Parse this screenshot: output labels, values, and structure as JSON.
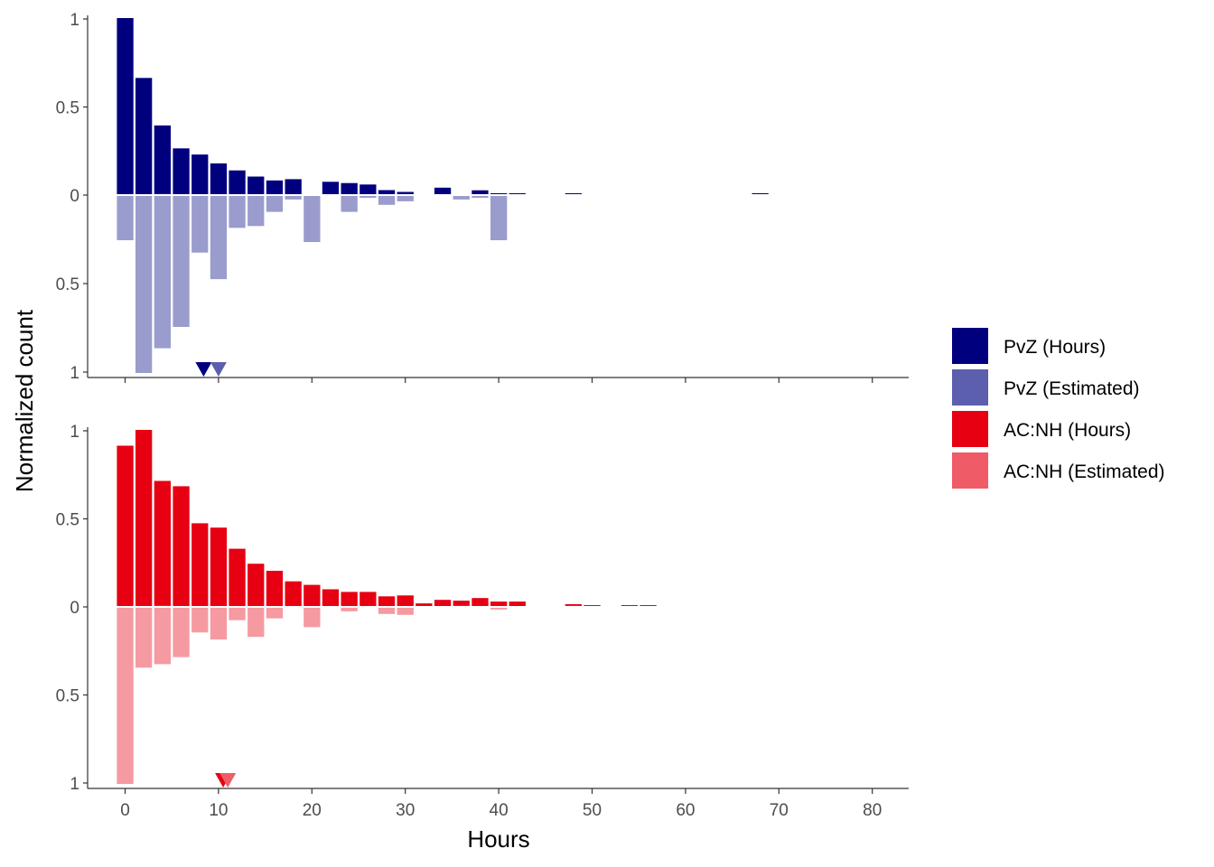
{
  "chart_data": {
    "type": "bar",
    "xlabel": "Hours",
    "ylabel": "Normalized count",
    "xlim": [
      -3,
      84
    ],
    "x_ticks": [
      "0",
      "10",
      "20",
      "30",
      "40",
      "50",
      "60",
      "70",
      "80"
    ],
    "y_tick_labels": [
      "1",
      "0.5",
      "0",
      "0.5",
      "1"
    ],
    "bin_width": 2,
    "grid": false,
    "legend_position": "right",
    "legend": [
      {
        "label": "PvZ (Hours)",
        "color": "#00007f"
      },
      {
        "label": "PvZ (Estimated)",
        "color": "#5b5fae"
      },
      {
        "label": "AC:NH (Hours)",
        "color": "#e60012"
      },
      {
        "label": "AC:NH (Estimated)",
        "color": "#ef5b67"
      }
    ],
    "panels": [
      {
        "up": {
          "name": "PvZ (Hours)",
          "color": "#00007f",
          "points": [
            [
              0,
              1.0
            ],
            [
              2,
              0.66
            ],
            [
              4,
              0.39
            ],
            [
              6,
              0.26
            ],
            [
              8,
              0.225
            ],
            [
              10,
              0.175
            ],
            [
              12,
              0.135
            ],
            [
              14,
              0.1
            ],
            [
              16,
              0.078
            ],
            [
              18,
              0.085
            ],
            [
              22,
              0.07
            ],
            [
              24,
              0.063
            ],
            [
              26,
              0.055
            ],
            [
              28,
              0.023
            ],
            [
              30,
              0.013
            ],
            [
              34,
              0.037
            ],
            [
              38,
              0.022
            ],
            [
              40,
              0.002
            ],
            [
              42,
              0.002
            ],
            [
              48,
              0.002
            ],
            [
              68,
              0.002
            ]
          ]
        },
        "down": {
          "name": "PvZ (Estimated)",
          "color": "#9a9ccd",
          "points": [
            [
              0,
              0.25
            ],
            [
              2,
              1.0
            ],
            [
              4,
              0.86
            ],
            [
              6,
              0.74
            ],
            [
              8,
              0.32
            ],
            [
              10,
              0.47
            ],
            [
              12,
              0.18
            ],
            [
              14,
              0.17
            ],
            [
              16,
              0.09
            ],
            [
              18,
              0.02
            ],
            [
              20,
              0.26
            ],
            [
              24,
              0.09
            ],
            [
              26,
              0.01
            ],
            [
              28,
              0.05
            ],
            [
              30,
              0.03
            ],
            [
              36,
              0.02
            ],
            [
              38,
              0.01
            ],
            [
              40,
              0.25
            ]
          ]
        },
        "marker_up": {
          "x": 8.4,
          "color": "#00007f"
        },
        "marker_down": {
          "x": 10.0,
          "color": "#5b5fae"
        }
      },
      {
        "up": {
          "name": "AC:NH (Hours)",
          "color": "#e60012",
          "points": [
            [
              0,
              0.91
            ],
            [
              2,
              1.0
            ],
            [
              4,
              0.71
            ],
            [
              6,
              0.68
            ],
            [
              8,
              0.47
            ],
            [
              10,
              0.445
            ],
            [
              12,
              0.325
            ],
            [
              14,
              0.24
            ],
            [
              16,
              0.2
            ],
            [
              18,
              0.14
            ],
            [
              20,
              0.12
            ],
            [
              22,
              0.095
            ],
            [
              24,
              0.08
            ],
            [
              26,
              0.08
            ],
            [
              28,
              0.055
            ],
            [
              30,
              0.06
            ],
            [
              32,
              0.015
            ],
            [
              34,
              0.035
            ],
            [
              36,
              0.03
            ],
            [
              38,
              0.045
            ],
            [
              40,
              0.025
            ],
            [
              42,
              0.025
            ],
            [
              48,
              0.01
            ],
            [
              50,
              0.005
            ],
            [
              54,
              0.005
            ],
            [
              56,
              0.005
            ]
          ]
        },
        "down": {
          "name": "AC:NH (Estimated)",
          "color": "#f59aa1",
          "points": [
            [
              0,
              1.0
            ],
            [
              2,
              0.34
            ],
            [
              4,
              0.32
            ],
            [
              6,
              0.28
            ],
            [
              8,
              0.14
            ],
            [
              10,
              0.18
            ],
            [
              12,
              0.07
            ],
            [
              14,
              0.165
            ],
            [
              16,
              0.06
            ],
            [
              20,
              0.11
            ],
            [
              24,
              0.02
            ],
            [
              28,
              0.035
            ],
            [
              30,
              0.04
            ],
            [
              40,
              0.01
            ]
          ]
        },
        "marker_up": {
          "x": 10.5,
          "color": "#e60012"
        },
        "marker_down": {
          "x": 11.0,
          "color": "#ef5b67"
        }
      }
    ]
  }
}
